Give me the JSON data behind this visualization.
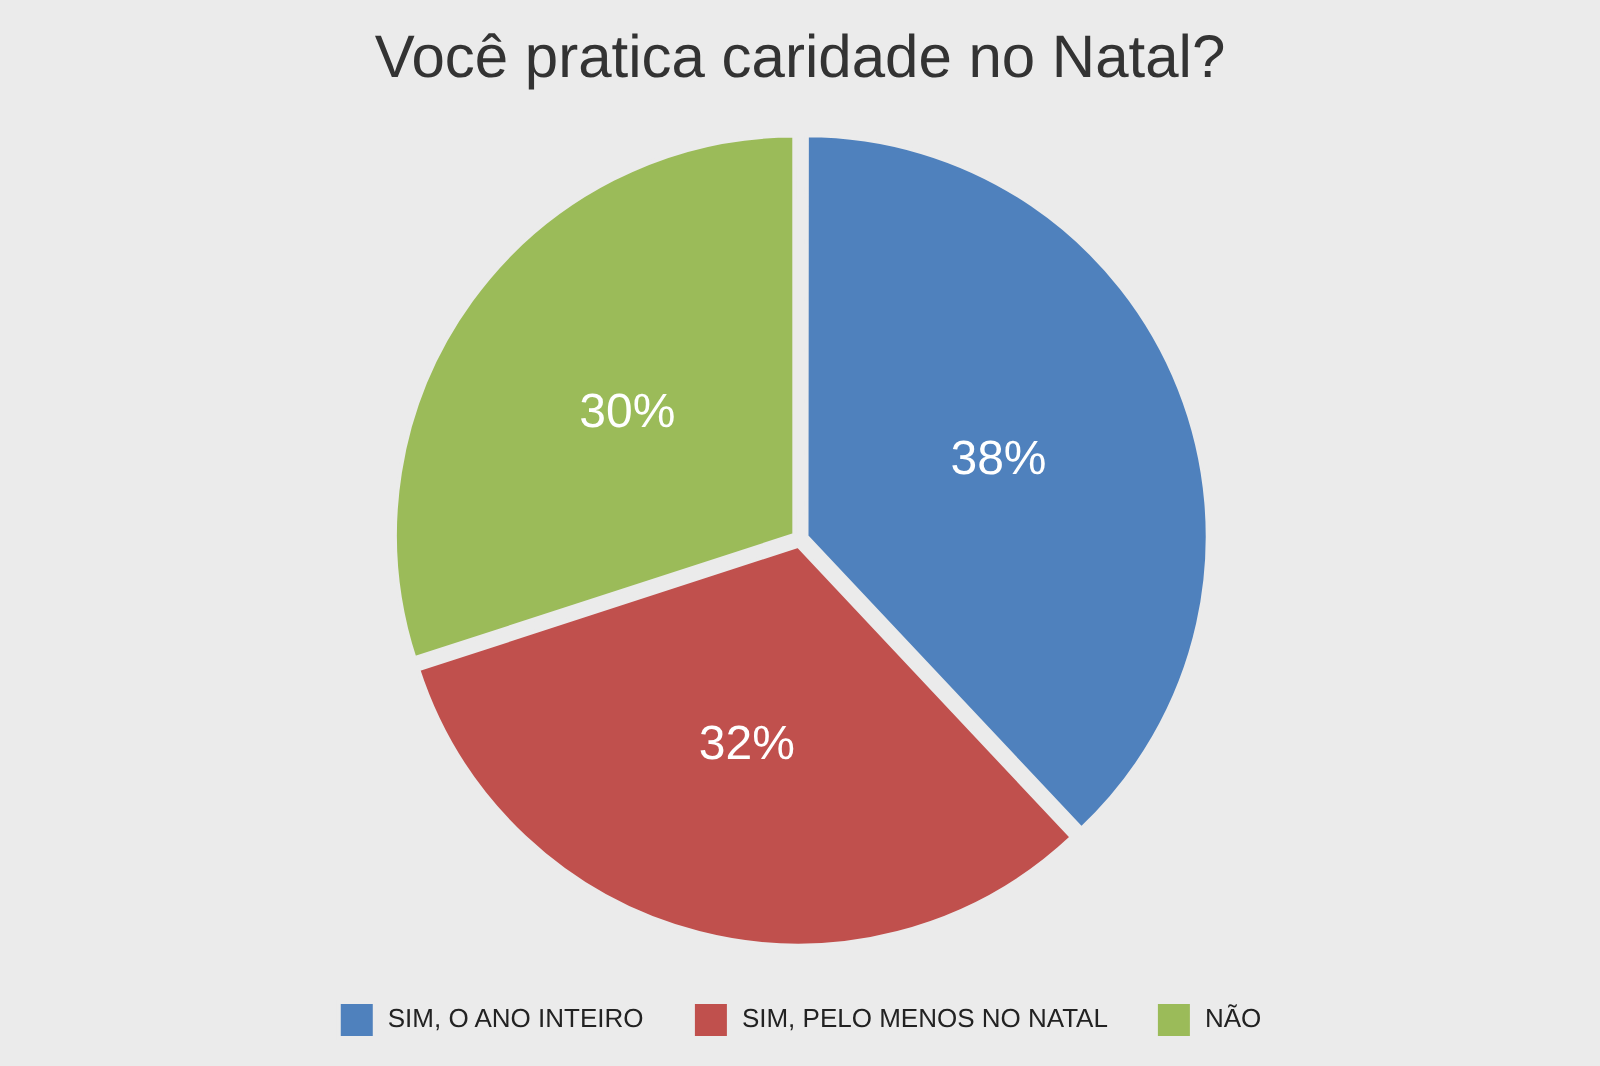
{
  "chart_data": {
    "type": "pie",
    "title": "Você pratica caridade no Natal?",
    "categories": [
      "SIM, O ANO INTEIRO",
      "SIM, PELO MENOS NO NATAL",
      "NÃO"
    ],
    "values": [
      38,
      32,
      30
    ],
    "colors": [
      "#4f81bd",
      "#c0504d",
      "#9bbb59"
    ],
    "value_labels": [
      "38%",
      "32%",
      "30%"
    ],
    "legend": "bottom"
  }
}
